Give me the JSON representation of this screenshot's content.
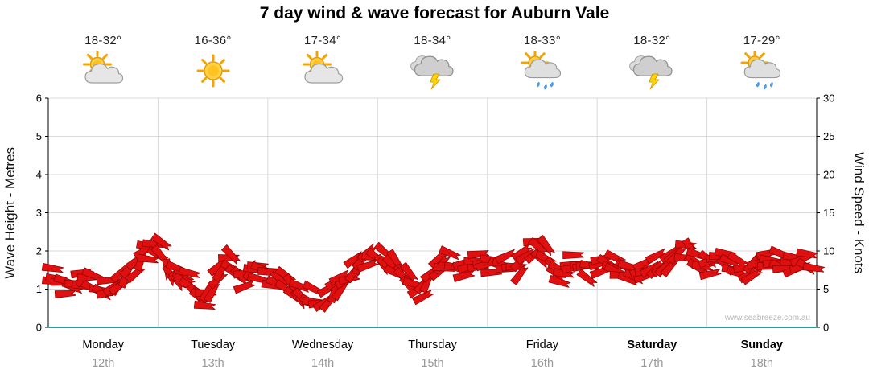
{
  "title": "7 day wind & wave forecast for Auburn Vale",
  "watermark": "www.seabreeze.com.au",
  "days": [
    {
      "name": "Monday",
      "date": "12th",
      "temp": "18-32°",
      "icon": "partly-cloudy",
      "weekend": false
    },
    {
      "name": "Tuesday",
      "date": "13th",
      "temp": "16-36°",
      "icon": "sunny",
      "weekend": false
    },
    {
      "name": "Wednesday",
      "date": "14th",
      "temp": "17-34°",
      "icon": "partly-cloudy",
      "weekend": false
    },
    {
      "name": "Thursday",
      "date": "15th",
      "temp": "18-34°",
      "icon": "thunderstorm",
      "weekend": false
    },
    {
      "name": "Friday",
      "date": "16th",
      "temp": "18-33°",
      "icon": "sun-showers",
      "weekend": false
    },
    {
      "name": "Saturday",
      "date": "17th",
      "temp": "18-32°",
      "icon": "thunderstorm",
      "weekend": true
    },
    {
      "name": "Sunday",
      "date": "18th",
      "temp": "17-29°",
      "icon": "sun-showers",
      "weekend": true
    }
  ],
  "chart_data": {
    "type": "line",
    "marker_style": "wind-barb-flags",
    "title": "7 day wind & wave forecast for Auburn Vale",
    "x_categories": [
      "Monday 12th",
      "Tuesday 13th",
      "Wednesday 14th",
      "Thursday 15th",
      "Friday 16th",
      "Saturday 17th",
      "Sunday 18th"
    ],
    "points_per_day": 12,
    "y_left": {
      "label": "Wave Height - Metres",
      "range": [
        0,
        6
      ],
      "ticks": [
        0,
        1,
        2,
        3,
        4,
        5,
        6
      ]
    },
    "y_right": {
      "label": "Wind Speed - Knots",
      "range": [
        0,
        30
      ],
      "ticks": [
        0,
        5,
        10,
        15,
        20,
        25,
        30
      ]
    },
    "right_axis_equivalent": "wind knots = wave metres x 5",
    "series": [
      {
        "name": "Forecast band (wave height, metres)",
        "axis": "left",
        "color": "#e01010",
        "values": [
          1.3,
          1.2,
          1.15,
          1.1,
          1.2,
          1.1,
          1.0,
          1.1,
          1.3,
          1.7,
          2.0,
          2.05,
          1.9,
          1.4,
          1.2,
          1.15,
          0.9,
          0.85,
          1.3,
          1.7,
          1.5,
          1.35,
          1.55,
          1.45,
          1.4,
          1.2,
          1.0,
          0.85,
          0.7,
          0.65,
          0.8,
          1.1,
          1.3,
          1.45,
          1.75,
          1.95,
          1.85,
          1.6,
          1.4,
          1.15,
          1.05,
          1.2,
          1.5,
          1.65,
          1.6,
          1.55,
          1.65,
          1.6,
          1.65,
          1.55,
          1.6,
          1.7,
          1.95,
          2.05,
          1.8,
          1.55,
          1.45,
          1.6,
          1.65,
          1.55,
          1.6,
          1.55,
          1.5,
          1.4,
          1.35,
          1.45,
          1.55,
          1.7,
          1.95,
          2.1,
          1.85,
          1.7,
          1.65,
          1.75,
          1.6,
          1.45,
          1.4,
          1.55,
          1.7,
          1.75,
          1.65,
          1.6,
          1.65,
          1.6
        ]
      }
    ],
    "grid": true,
    "legend": "none"
  },
  "colors": {
    "barb_fill": "#e01010",
    "barb_stroke": "#8f0000",
    "grid": "#d9d9d9",
    "axis": "#000000",
    "baseline": "#2e9c9c",
    "date_text": "#999999",
    "watermark_text": "#b8b8b8"
  }
}
